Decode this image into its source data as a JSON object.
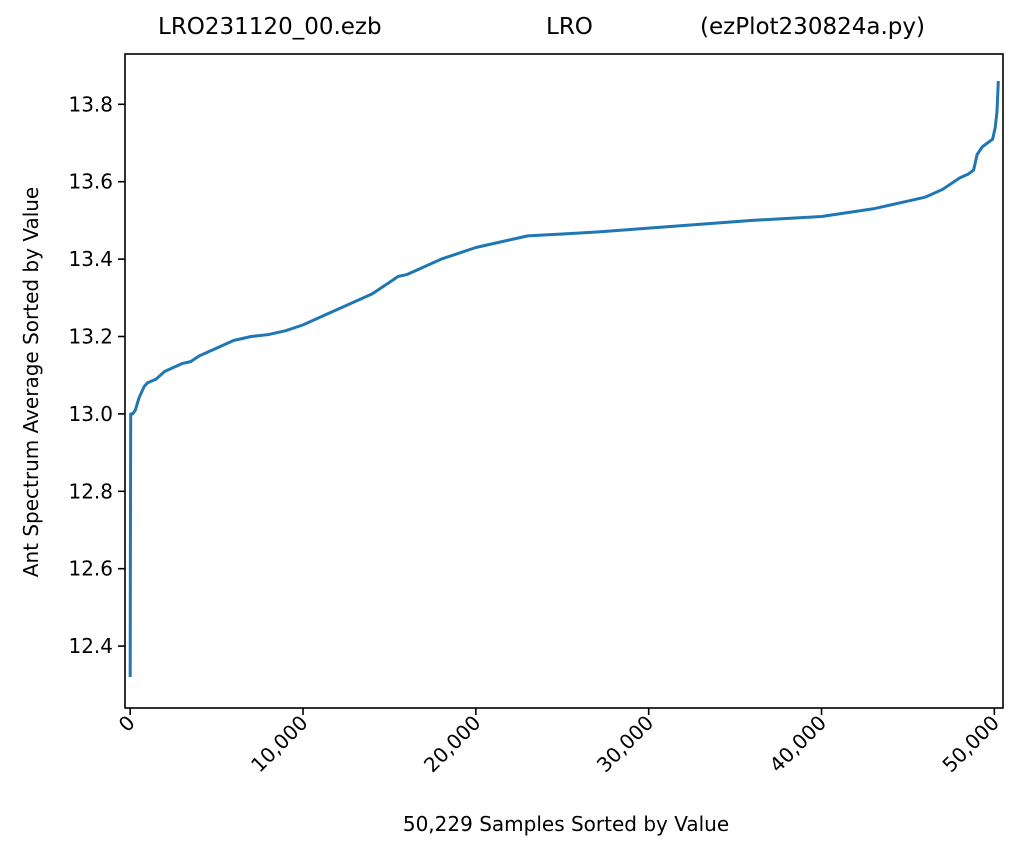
{
  "chart_data": {
    "type": "line",
    "title_parts": [
      "LRO231120_00.ezb",
      "LRO",
      "(ezPlot230824a.py)"
    ],
    "xlabel": "50,229 Samples Sorted by Value",
    "ylabel": "Ant Spectrum Average Sorted by Value",
    "xlim": [
      -300,
      50500
    ],
    "ylim": [
      12.24,
      13.93
    ],
    "xticks": [
      0,
      10000,
      20000,
      30000,
      40000,
      50000
    ],
    "xtick_labels": [
      "0",
      "10,000",
      "20,000",
      "30,000",
      "40,000",
      "50,000"
    ],
    "yticks": [
      12.4,
      12.6,
      12.8,
      13.0,
      13.2,
      13.4,
      13.6,
      13.8
    ],
    "ytick_labels": [
      "12.4",
      "12.6",
      "12.8",
      "13.0",
      "13.2",
      "13.4",
      "13.6",
      "13.8"
    ],
    "grid": false,
    "series": [
      {
        "color": "#1f77b4",
        "x": [
          0,
          10,
          30,
          80,
          150,
          300,
          500,
          800,
          1000,
          1500,
          2000,
          2500,
          3000,
          3500,
          4000,
          4500,
          5000,
          6000,
          7000,
          8000,
          9000,
          10000,
          11000,
          12000,
          13000,
          14000,
          15000,
          15500,
          16000,
          17000,
          18000,
          19000,
          20000,
          21000,
          22000,
          23000,
          25000,
          27000,
          30000,
          33000,
          36000,
          40000,
          43000,
          45000,
          46000,
          47000,
          48000,
          48500,
          48800,
          49000,
          49300,
          49600,
          49900,
          50050,
          50150,
          50200,
          50229
        ],
        "y": [
          12.32,
          12.6,
          13.0,
          13.0,
          13.0,
          13.01,
          13.04,
          13.07,
          13.08,
          13.09,
          13.11,
          13.12,
          13.13,
          13.135,
          13.15,
          13.16,
          13.17,
          13.19,
          13.2,
          13.205,
          13.215,
          13.23,
          13.25,
          13.27,
          13.29,
          13.31,
          13.34,
          13.355,
          13.36,
          13.38,
          13.4,
          13.415,
          13.43,
          13.44,
          13.45,
          13.46,
          13.465,
          13.47,
          13.48,
          13.49,
          13.5,
          13.51,
          13.53,
          13.55,
          13.56,
          13.58,
          13.61,
          13.62,
          13.63,
          13.67,
          13.69,
          13.7,
          13.71,
          13.74,
          13.78,
          13.83,
          13.86
        ]
      }
    ]
  }
}
